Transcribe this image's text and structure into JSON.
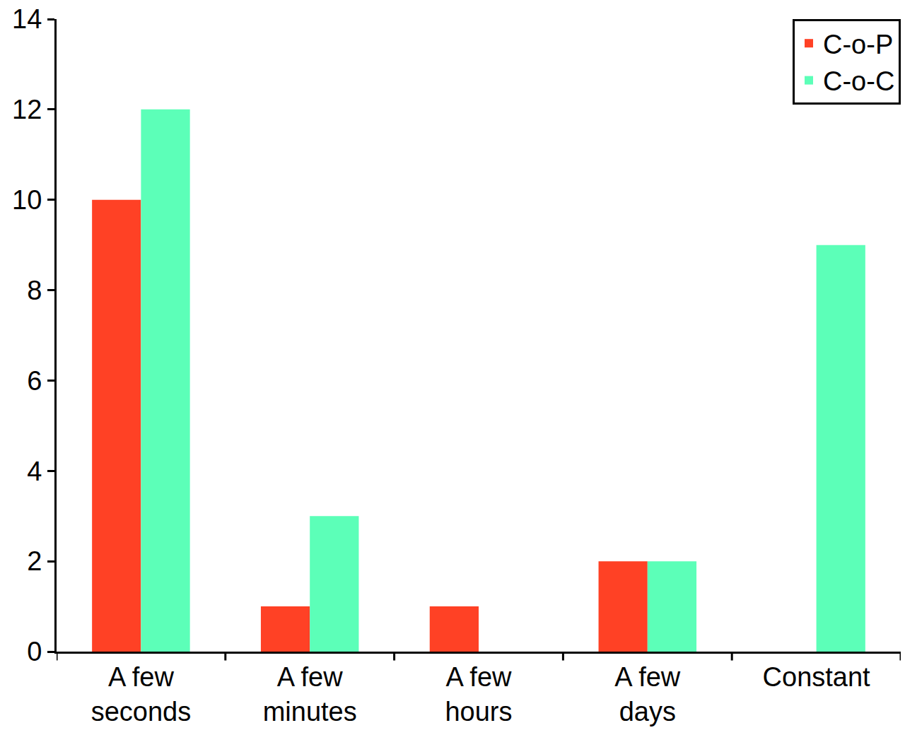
{
  "chart_data": {
    "type": "bar",
    "categories": [
      "A few seconds",
      "A few minutes",
      "A few hours",
      "A few days",
      "Constant"
    ],
    "series": [
      {
        "name": "C-o-P",
        "color": "#ff4125",
        "values": [
          10,
          1,
          1,
          2,
          0
        ]
      },
      {
        "name": "C-o-C",
        "color": "#5cffb8",
        "values": [
          12,
          3,
          0,
          2,
          9
        ]
      }
    ],
    "ylim": [
      0,
      14
    ],
    "yticks": [
      0,
      2,
      4,
      6,
      8,
      10,
      12,
      14
    ],
    "grid": false,
    "legend": "upper right"
  }
}
